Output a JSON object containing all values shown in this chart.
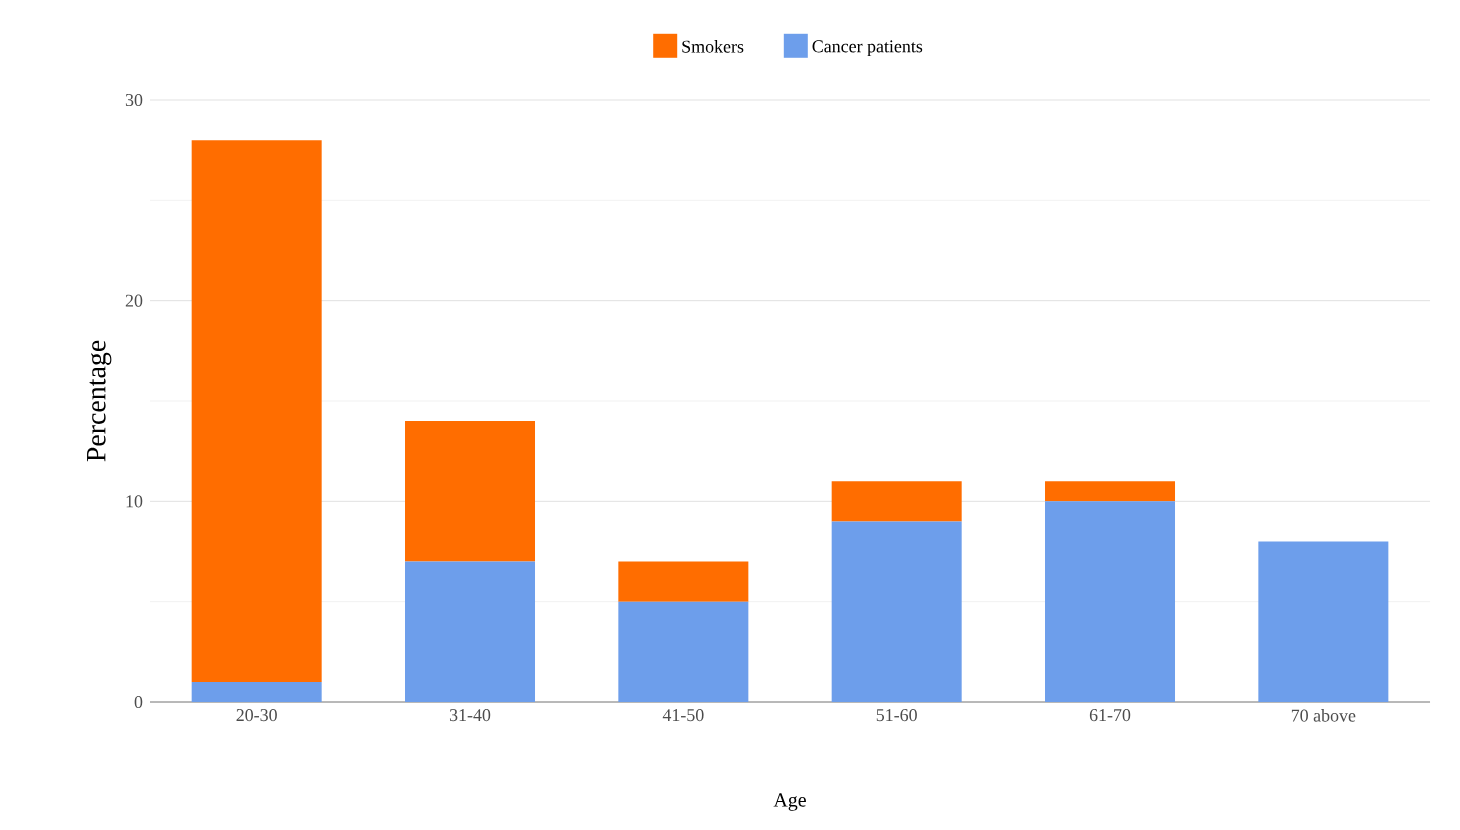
{
  "chart_data": {
    "type": "bar",
    "stacked": true,
    "xlabel": "Age",
    "ylabel": "Percentage",
    "categories": [
      "20-30",
      "31-40",
      "41-50",
      "51-60",
      "61-70",
      "70 above"
    ],
    "series": [
      {
        "name": "Cancer patients",
        "color": "#6d9eeb",
        "values": [
          1,
          7,
          5,
          9,
          10,
          8
        ]
      },
      {
        "name": "Smokers",
        "color": "#ff6d00",
        "values": [
          27,
          7,
          2,
          2,
          1,
          0
        ]
      }
    ],
    "ylim": [
      0,
      30
    ],
    "yticks": [
      0,
      10,
      20,
      30
    ],
    "grid": "y",
    "legend": "top"
  }
}
